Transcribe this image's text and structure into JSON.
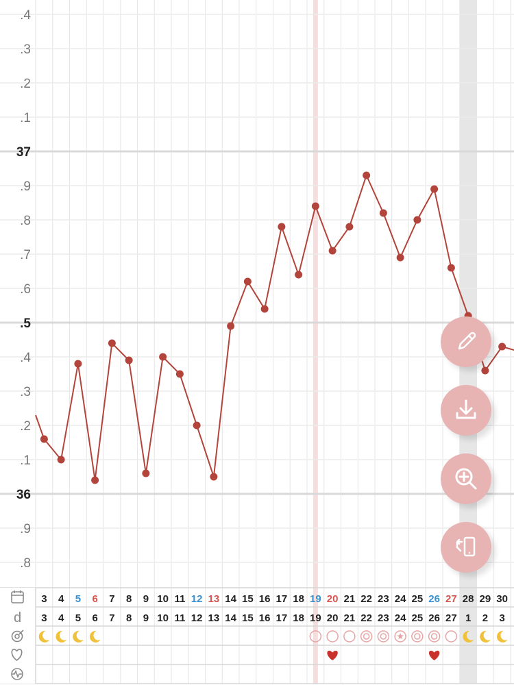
{
  "chart_data": {
    "type": "line",
    "y_labels": [
      ".4",
      ".3",
      ".2",
      ".1",
      "37",
      ".9",
      ".8",
      ".7",
      ".6",
      ".5",
      ".4",
      ".3",
      ".2",
      ".1",
      "36",
      ".9",
      ".8"
    ],
    "ylim": [
      35.75,
      37.45
    ],
    "date_row": [
      "3",
      "4",
      "5",
      "6",
      "7",
      "8",
      "9",
      "10",
      "11",
      "12",
      "13",
      "14",
      "15",
      "16",
      "17",
      "18",
      "19",
      "20",
      "21",
      "22",
      "23",
      "24",
      "25",
      "26",
      "27",
      "28",
      "29",
      "30"
    ],
    "date_colors": [
      "#222",
      "#222",
      "#3a8fd0",
      "#d9534f",
      "#222",
      "#222",
      "#222",
      "#222",
      "#222",
      "#3a8fd0",
      "#d9534f",
      "#222",
      "#222",
      "#222",
      "#222",
      "#222",
      "#3a8fd0",
      "#d9534f",
      "#222",
      "#222",
      "#222",
      "#222",
      "#222",
      "#3a8fd0",
      "#d9534f",
      "#222",
      "#222",
      "#222"
    ],
    "cycle_day_label": "d",
    "cycle_day_row": [
      "3",
      "4",
      "5",
      "6",
      "7",
      "8",
      "9",
      "10",
      "11",
      "12",
      "13",
      "14",
      "15",
      "16",
      "17",
      "18",
      "19",
      "20",
      "21",
      "22",
      "23",
      "24",
      "25",
      "26",
      "27",
      "1",
      "2",
      "3"
    ],
    "series": [
      {
        "color": "#b3443b",
        "values": [
          36.16,
          36.1,
          36.38,
          36.04,
          36.44,
          36.39,
          36.06,
          36.4,
          36.35,
          36.2,
          36.05,
          36.49,
          36.62,
          36.54,
          36.78,
          36.64,
          36.84,
          36.71,
          36.78,
          36.93,
          36.82,
          36.69,
          36.8,
          36.89,
          36.66,
          36.52,
          36.36,
          36.43
        ],
        "left_edge_value": 36.23,
        "right_edge_value": 36.42
      }
    ],
    "grid": true,
    "highlight_columns": [
      {
        "index": 16,
        "color": "#f6dede",
        "kind": "ovulation-day"
      },
      {
        "index": 25,
        "color": "#e6e6e6",
        "kind": "cycle-start"
      }
    ],
    "row_icons": {
      "calendar_row": "calendar-icon",
      "cycle_row": "d",
      "fertility_row": "fertility-target-icon",
      "intercourse_row": "heart-outline-icon",
      "symptom_row": "pulse-icon"
    },
    "fertility_row": [
      "moon",
      "moon",
      "moon",
      "moon",
      "",
      "",
      "",
      "",
      "",
      "",
      "",
      "",
      "",
      "",
      "",
      "",
      "circle",
      "circle",
      "circle",
      "target",
      "target",
      "star-circle",
      "target",
      "target",
      "circle",
      "moon",
      "moon",
      "moon"
    ],
    "intercourse_row": [
      "",
      "",
      "",
      "",
      "",
      "",
      "",
      "",
      "",
      "",
      "",
      "",
      "",
      "",
      "",
      "",
      "",
      "heart",
      "",
      "",
      "",
      "",
      "",
      "heart",
      "",
      "",
      "",
      ""
    ]
  },
  "actions": {
    "edit_icon": "pencil-icon",
    "download_icon": "download-icon",
    "zoom_icon": "zoom-in-icon",
    "rotate_icon": "rotate-screen-icon"
  },
  "colors": {
    "line": "#b3443b",
    "fab": "#e7b3b3",
    "moon": "#f0c23c",
    "heart": "#c9312b",
    "fertile": "#e6a5a5"
  }
}
